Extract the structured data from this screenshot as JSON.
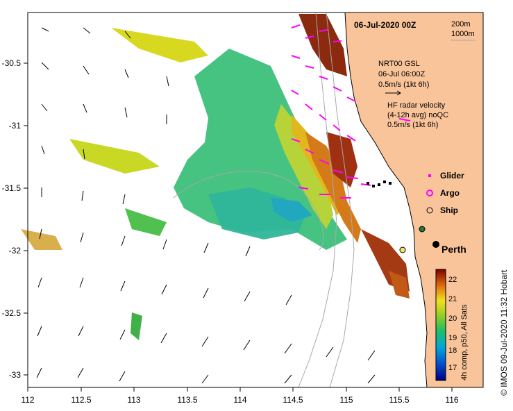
{
  "map": {
    "title": "06-Jul-2020 00Z",
    "bathymetry_legend": [
      "200m",
      "1000m"
    ],
    "x_axis_ticks": [
      "112",
      "112.5",
      "113",
      "113.5",
      "114",
      "114.5",
      "115",
      "115.5",
      "116"
    ],
    "y_axis_ticks": [
      "-30.5",
      "-31",
      "-31.5",
      "-32",
      "-32.5",
      "-33"
    ],
    "city_label": "Perth",
    "credit": "© IMOS 09-Jul-2020 11:32 Hobart",
    "colorbar": {
      "label": "4h comp, p50, All Sats",
      "ticks": [
        "22",
        "21",
        "20",
        "19",
        "18",
        "17"
      ]
    },
    "wind_legend": {
      "line1": "NRT00 GSL",
      "line2": "06-Jul 06:00Z",
      "line3": "0.5m/s (1kt 6h)"
    },
    "radar_legend": {
      "line1": "HF radar velocity",
      "line2": "(4-12h avg) noQC",
      "line3": "0.5m/s (1kt 6h)"
    },
    "symbols_legend": {
      "glider": "Glider",
      "argo": "Argo",
      "ship": "Ship"
    },
    "colors": {
      "land": "#f9c49a",
      "radar_arrows": "#ff00ff",
      "glider": "#ff00ff",
      "ship": "#000000"
    }
  }
}
